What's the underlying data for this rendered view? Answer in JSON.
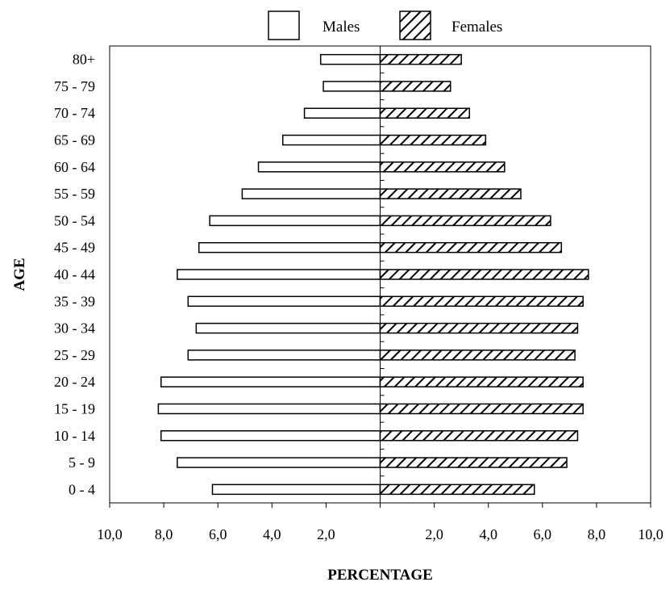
{
  "chart_data": {
    "type": "bar",
    "orientation": "horizontal",
    "layout": "population-pyramid",
    "title": "",
    "xlabel": "PERCENTAGE",
    "ylabel": "AGE",
    "categories": [
      "0 - 4",
      "5 - 9",
      "10 - 14",
      "15 - 19",
      "20 - 24",
      "25 - 29",
      "30 - 34",
      "35 - 39",
      "40 - 44",
      "45 - 49",
      "50 - 54",
      "55 - 59",
      "60 - 64",
      "65 - 69",
      "70 - 74",
      "75 - 79",
      "80+"
    ],
    "series": [
      {
        "name": "Males",
        "side": "left",
        "fill": "empty",
        "values": [
          6.2,
          7.5,
          8.1,
          8.2,
          8.1,
          7.1,
          6.8,
          7.1,
          7.5,
          6.7,
          6.3,
          5.1,
          4.5,
          3.6,
          2.8,
          2.1,
          2.2
        ]
      },
      {
        "name": "Females",
        "side": "right",
        "fill": "diagonal-hatch",
        "values": [
          5.7,
          6.9,
          7.3,
          7.5,
          7.5,
          7.2,
          7.3,
          7.5,
          7.7,
          6.7,
          6.3,
          5.2,
          4.6,
          3.9,
          3.3,
          2.6,
          3.0
        ]
      }
    ],
    "xlim": [
      -10,
      10
    ],
    "xticks": [
      -10,
      -8,
      -6,
      -4,
      -2,
      2,
      4,
      6,
      8,
      10
    ],
    "xtick_labels": [
      "10,0",
      "8,0",
      "6,0",
      "4,0",
      "2,0",
      "2,0",
      "4,0",
      "6,0",
      "8,0",
      "10,0"
    ],
    "legend": {
      "placement": "top-center",
      "entries": [
        "Males",
        "Females"
      ]
    },
    "grid": false,
    "colors": {
      "bar_stroke": "#000000",
      "bar_empty_fill": "#ffffff",
      "hatch": "#000000",
      "frame": "#000000",
      "text": "#000000"
    }
  }
}
